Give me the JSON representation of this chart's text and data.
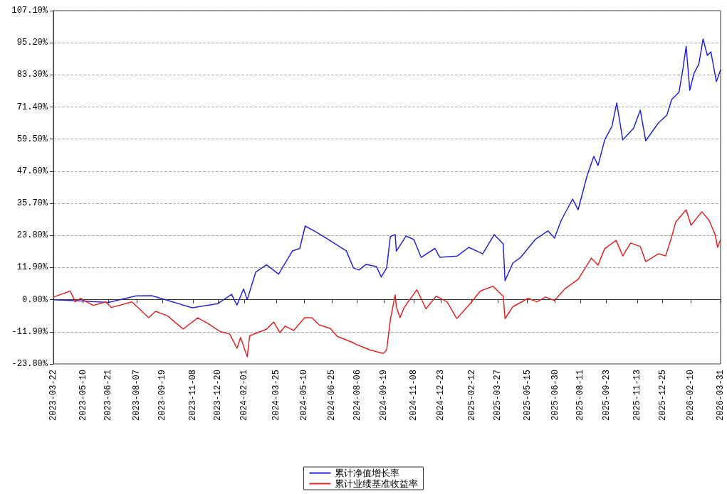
{
  "chart_data": {
    "type": "line",
    "xlim": [
      "2023-03-22",
      "2026-03-31"
    ],
    "xticks": [
      "2023-03-22",
      "2023-05-10",
      "2023-06-21",
      "2023-08-07",
      "2023-09-19",
      "2023-11-08",
      "2023-12-20",
      "2024-02-01",
      "2024-03-25",
      "2024-05-10",
      "2024-06-25",
      "2024-08-06",
      "2024-09-19",
      "2024-11-08",
      "2024-12-23",
      "2025-02-12",
      "2025-03-27",
      "2025-05-15",
      "2025-06-30",
      "2025-08-11",
      "2025-09-23",
      "2025-11-13",
      "2025-12-25",
      "2026-02-10",
      "2026-03-31"
    ],
    "ylim": [
      -23.8,
      107.1
    ],
    "yticks": [
      {
        "value": -23.8,
        "label": "-23.80%"
      },
      {
        "value": -11.9,
        "label": "-11.90%"
      },
      {
        "value": 0,
        "label": "0.00%"
      },
      {
        "value": 11.9,
        "label": "11.90%"
      },
      {
        "value": 23.8,
        "label": "23.80%"
      },
      {
        "value": 35.7,
        "label": "35.70%"
      },
      {
        "value": 47.6,
        "label": "47.60%"
      },
      {
        "value": 59.5,
        "label": "59.50%"
      },
      {
        "value": 71.4,
        "label": "71.40%"
      },
      {
        "value": 83.3,
        "label": "83.30%"
      },
      {
        "value": 95.2,
        "label": "95.20%"
      },
      {
        "value": 107.1,
        "label": "107.10%"
      }
    ],
    "grid": "y",
    "legend": "bottom",
    "marker": "none",
    "line_style": "solid",
    "series": [
      {
        "name": "累计净值增长率",
        "color": "#2424d4",
        "x": [
          "2023-03-22",
          "2023-05-10",
          "2023-06-21",
          "2023-08-06",
          "2023-09-01",
          "2023-09-19",
          "2023-11-07",
          "2023-12-19",
          "2024-01-11",
          "2024-01-20",
          "2024-01-31",
          "2024-02-06",
          "2024-02-20",
          "2024-03-09",
          "2024-03-29",
          "2024-04-21",
          "2024-05-03",
          "2024-05-12",
          "2024-05-27",
          "2024-06-16",
          "2024-07-04",
          "2024-07-19",
          "2024-07-31",
          "2024-08-09",
          "2024-08-21",
          "2024-09-07",
          "2024-09-15",
          "2024-09-24",
          "2024-09-30",
          "2024-10-08",
          "2024-10-10",
          "2024-10-26",
          "2024-11-08",
          "2024-11-20",
          "2024-12-13",
          "2024-12-21",
          "2025-01-19",
          "2025-02-07",
          "2025-03-02",
          "2025-03-21",
          "2025-04-05",
          "2025-04-08",
          "2025-04-21",
          "2025-05-04",
          "2025-05-28",
          "2025-06-18",
          "2025-06-29",
          "2025-07-10",
          "2025-07-29",
          "2025-08-07",
          "2025-08-22",
          "2025-09-02",
          "2025-09-09",
          "2025-09-20",
          "2025-10-02",
          "2025-10-10",
          "2025-10-20",
          "2025-11-07",
          "2025-11-18",
          "2025-11-27",
          "2025-12-18",
          "2026-01-01",
          "2026-01-09",
          "2026-01-21",
          "2026-01-27",
          "2026-02-02",
          "2026-02-08",
          "2026-02-15",
          "2026-02-23",
          "2026-03-02",
          "2026-03-09",
          "2026-03-15",
          "2026-03-24",
          "2026-03-31"
        ],
        "values": [
          0,
          -0.5,
          -1,
          1.4,
          1.5,
          0.3,
          -3,
          -1.5,
          2,
          -2,
          4,
          0,
          10.2,
          12.9,
          9.5,
          18.1,
          19,
          27.3,
          25.5,
          22.8,
          20.2,
          18.1,
          11.8,
          11,
          13.1,
          12.3,
          8.4,
          11.8,
          23.4,
          24.1,
          18,
          23.6,
          22.3,
          15.7,
          19,
          15.7,
          16.2,
          19.4,
          17,
          24.1,
          20.7,
          7,
          13.6,
          15.7,
          22.3,
          25.5,
          22.8,
          29.4,
          37.3,
          33.3,
          46,
          53.1,
          49.7,
          59.2,
          64.2,
          72.9,
          59.2,
          63.6,
          70.2,
          58.9,
          65.5,
          68.4,
          74.2,
          76.8,
          84.7,
          93.9,
          77.6,
          83.9,
          87.3,
          96.6,
          90.5,
          91.8,
          80.8,
          85.2
        ]
      },
      {
        "name": "累计业绩基准收益率",
        "color": "#e02424",
        "x": [
          "2023-03-22",
          "2023-04-19",
          "2023-04-27",
          "2023-05-06",
          "2023-05-27",
          "2023-06-17",
          "2023-06-26",
          "2023-07-30",
          "2023-08-27",
          "2023-09-07",
          "2023-09-27",
          "2023-10-23",
          "2023-11-16",
          "2023-12-03",
          "2023-12-24",
          "2024-01-08",
          "2024-01-20",
          "2024-01-26",
          "2024-02-06",
          "2024-02-10",
          "2024-03-09",
          "2024-03-21",
          "2024-03-31",
          "2024-04-09",
          "2024-04-23",
          "2024-05-11",
          "2024-05-23",
          "2024-06-04",
          "2024-06-23",
          "2024-07-04",
          "2024-07-30",
          "2024-08-06",
          "2024-08-27",
          "2024-09-18",
          "2024-09-24",
          "2024-09-30",
          "2024-10-08",
          "2024-10-10",
          "2024-10-16",
          "2024-10-23",
          "2024-11-13",
          "2024-11-28",
          "2024-12-15",
          "2025-01-02",
          "2025-01-18",
          "2025-02-10",
          "2025-02-26",
          "2025-03-19",
          "2025-04-05",
          "2025-04-08",
          "2025-04-21",
          "2025-05-16",
          "2025-05-31",
          "2025-06-14",
          "2025-06-29",
          "2025-07-16",
          "2025-08-07",
          "2025-08-29",
          "2025-09-09",
          "2025-09-20",
          "2025-10-09",
          "2025-10-20",
          "2025-11-02",
          "2025-11-18",
          "2025-11-27",
          "2025-12-18",
          "2025-12-30",
          "2026-01-09",
          "2026-01-16",
          "2026-02-02",
          "2026-02-10",
          "2026-02-28",
          "2026-03-12",
          "2026-03-22",
          "2026-03-26",
          "2026-03-31"
        ],
        "values": [
          1,
          3.2,
          -0.8,
          0.5,
          -2.1,
          -0.8,
          -2.9,
          -0.8,
          -6.7,
          -4.3,
          -6,
          -10.9,
          -6.7,
          -8.8,
          -11.9,
          -12.7,
          -18,
          -14,
          -21.2,
          -13.4,
          -10.9,
          -8.3,
          -12.2,
          -9.8,
          -11.4,
          -6.7,
          -6.7,
          -9.3,
          -10.7,
          -13.6,
          -15.9,
          -16.7,
          -18.6,
          -19.9,
          -18.6,
          -7.5,
          1.8,
          -2.6,
          -6.7,
          -2.9,
          3.7,
          -3.4,
          1.3,
          -0.8,
          -7,
          -1.3,
          3.2,
          5,
          1.3,
          -7,
          -2.6,
          0.5,
          -0.8,
          1,
          -0.3,
          4,
          7.5,
          15.4,
          12.8,
          18.9,
          22,
          16.2,
          21,
          19.7,
          14.1,
          17,
          16.2,
          23.3,
          28.9,
          33.3,
          27.6,
          32.6,
          29.4,
          24.1,
          19.4,
          22.3
        ]
      }
    ]
  }
}
